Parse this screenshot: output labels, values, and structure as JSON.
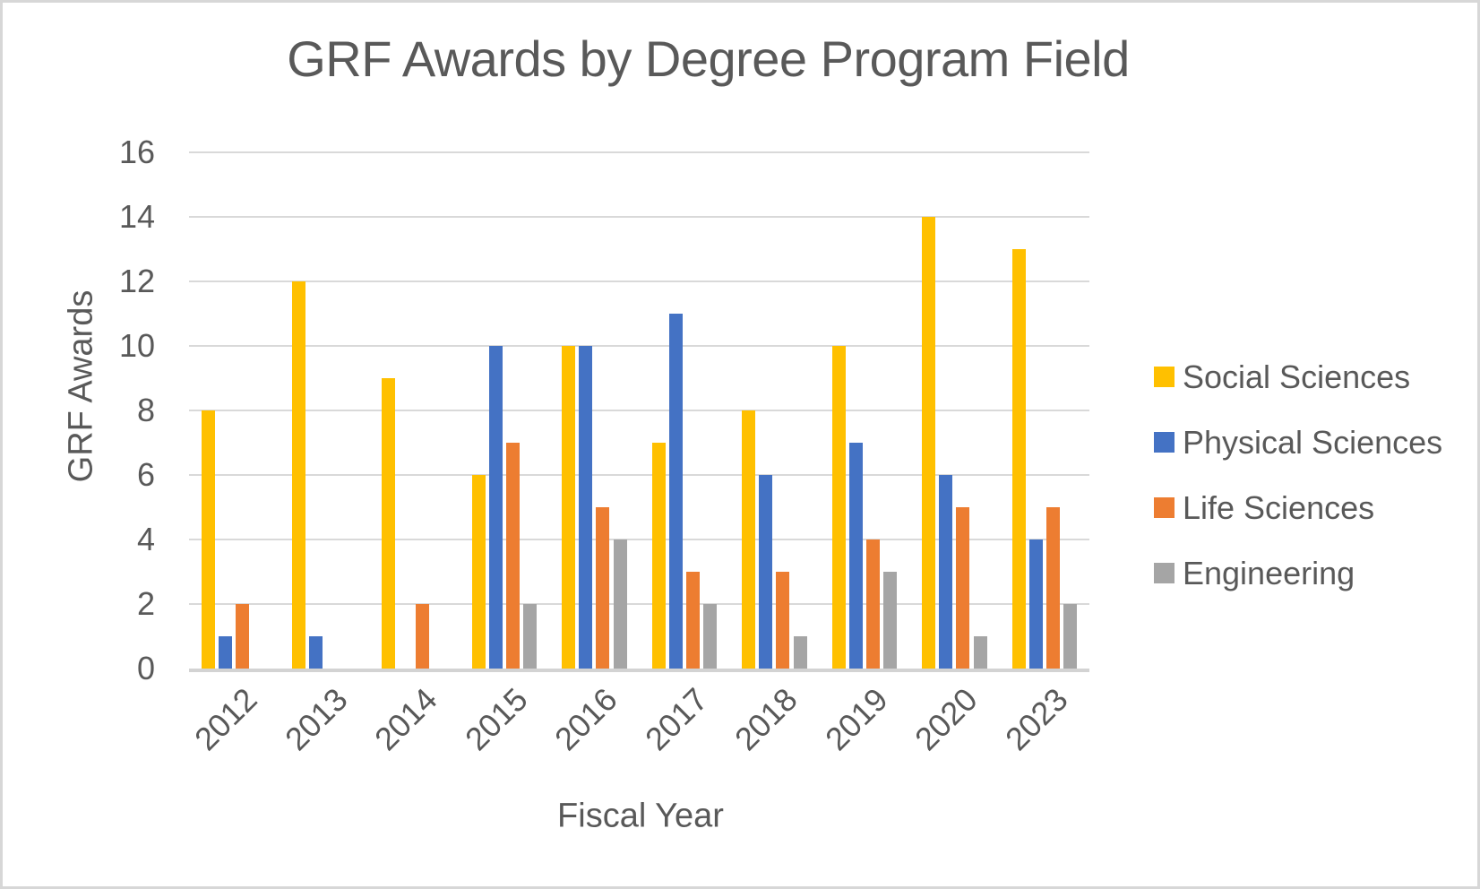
{
  "chart_data": {
    "type": "bar",
    "title": "GRF Awards by Degree Program Field",
    "xlabel": "Fiscal Year",
    "ylabel": "GRF Awards",
    "categories": [
      "2012",
      "2013",
      "2014",
      "2015",
      "2016",
      "2017",
      "2018",
      "2019",
      "2020",
      "2023"
    ],
    "series": [
      {
        "name": "Social Sciences",
        "color": "#FFC000",
        "values": [
          8,
          12,
          9,
          6,
          10,
          7,
          8,
          10,
          14,
          13
        ]
      },
      {
        "name": "Physical Sciences",
        "color": "#4472C4",
        "values": [
          1,
          1,
          0,
          10,
          10,
          11,
          6,
          7,
          6,
          4
        ]
      },
      {
        "name": "Life Sciences",
        "color": "#ED7D31",
        "values": [
          2,
          0,
          2,
          7,
          5,
          3,
          3,
          4,
          5,
          5
        ]
      },
      {
        "name": "Engineering",
        "color": "#A5A5A5",
        "values": [
          0,
          0,
          0,
          2,
          4,
          2,
          1,
          3,
          1,
          2
        ]
      }
    ],
    "ylim": [
      0,
      16
    ],
    "ytick_step": 2,
    "yticks": [
      0,
      2,
      4,
      6,
      8,
      10,
      12,
      14,
      16
    ],
    "x_tick_rotation": 45,
    "grid": true,
    "legend_position": "right"
  },
  "style_colors": {
    "text": "#595959",
    "gridline": "#D9D9D9",
    "axis_line": "#D3D3D3",
    "background": "#FFFFFF",
    "frame_border": "#D7D7D7"
  }
}
